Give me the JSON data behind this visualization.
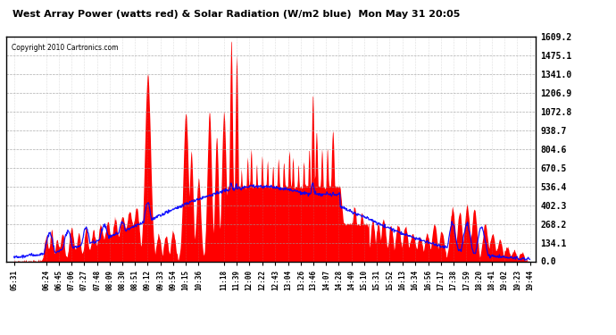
{
  "title": "West Array Power (watts red) & Solar Radiation (W/m2 blue)  Mon May 31 20:05",
  "copyright": "Copyright 2010 Cartronics.com",
  "yticks": [
    0.0,
    134.1,
    268.2,
    402.3,
    536.4,
    670.5,
    804.6,
    938.7,
    1072.8,
    1206.9,
    1341.0,
    1475.1,
    1609.2
  ],
  "ymax": 1609.2,
  "bg_color": "#ffffff",
  "plot_bg": "#ffffff",
  "grid_color": "#999999",
  "red_color": "#ff0000",
  "blue_color": "#0000ff",
  "x_labels": [
    "05:31",
    "06:24",
    "06:45",
    "07:06",
    "07:27",
    "07:48",
    "08:09",
    "08:30",
    "08:51",
    "09:12",
    "09:33",
    "09:54",
    "10:15",
    "10:36",
    "11:18",
    "11:39",
    "12:00",
    "12:22",
    "12:43",
    "13:04",
    "13:26",
    "13:46",
    "14:07",
    "14:28",
    "14:49",
    "15:10",
    "15:31",
    "15:52",
    "16:13",
    "16:34",
    "16:56",
    "17:17",
    "17:38",
    "17:59",
    "18:20",
    "18:41",
    "19:02",
    "19:23",
    "19:44"
  ],
  "x_label_hours": [
    5.516,
    6.4,
    6.75,
    7.1,
    7.45,
    7.8,
    8.15,
    8.5,
    8.85,
    9.2,
    9.55,
    9.9,
    10.25,
    10.6,
    11.3,
    11.65,
    12.0,
    12.367,
    12.717,
    13.067,
    13.433,
    13.767,
    14.117,
    14.467,
    14.817,
    15.167,
    15.517,
    15.867,
    16.217,
    16.567,
    16.933,
    17.283,
    17.633,
    17.983,
    18.333,
    18.683,
    19.033,
    19.383,
    19.733
  ]
}
